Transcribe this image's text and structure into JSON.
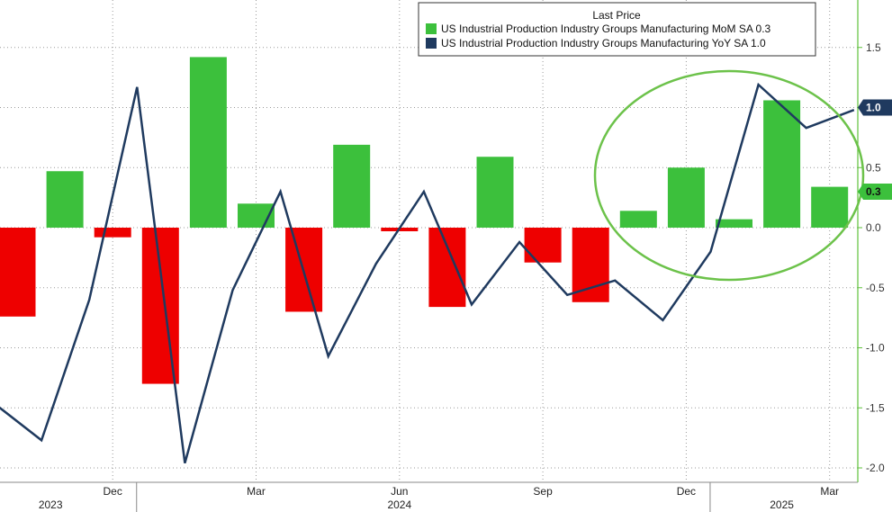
{
  "chart_data": {
    "type": "bar+line",
    "legend": {
      "title": "Last Price",
      "position": "top-right"
    },
    "x_ticks": [
      {
        "label": "Dec",
        "index": 2
      },
      {
        "label": "Mar",
        "index": 5
      },
      {
        "label": "Jun",
        "index": 8
      },
      {
        "label": "Sep",
        "index": 11
      },
      {
        "label": "Dec",
        "index": 14
      },
      {
        "label": "Mar",
        "index": 17
      }
    ],
    "year_labels": [
      {
        "label": "2023",
        "index": 0.7
      },
      {
        "label": "2024",
        "index": 8
      },
      {
        "label": "2025",
        "index": 16
      }
    ],
    "year_dividers": [
      2.5,
      14.5
    ],
    "y_axis": {
      "position": "right",
      "min": -2.0,
      "max": 1.5,
      "ticks": [
        "1.5",
        "1.0",
        "0.5",
        "0.0",
        "-0.5",
        "-1.0",
        "-1.5",
        "-2.0"
      ],
      "color": "#5ec13a"
    },
    "grid": true,
    "bars": {
      "name": "US Industrial Production Industry Groups Manufacturing MoM SA",
      "last_value": "0.3",
      "positive_color": "#3cc03c",
      "negative_color": "#ee0000",
      "values": [
        -0.74,
        0.47,
        -0.08,
        -1.3,
        1.42,
        0.2,
        -0.7,
        0.69,
        -0.03,
        -0.66,
        0.59,
        -0.29,
        -0.62,
        0.14,
        0.5,
        0.07,
        1.06,
        0.34
      ]
    },
    "line": {
      "name": "US Industrial Production Industry Groups Manufacturing YoY SA",
      "last_value": "1.0",
      "color": "#1f3a5f",
      "values": [
        -1.46,
        -1.77,
        -0.6,
        1.17,
        -1.96,
        -0.52,
        0.3,
        -1.07,
        -0.3,
        0.3,
        -0.64,
        -0.12,
        -0.56,
        -0.44,
        -0.77,
        -0.2,
        1.19,
        0.83,
        0.98
      ]
    },
    "annotation": {
      "shape": "ellipse",
      "color": "#6cc24a"
    }
  }
}
